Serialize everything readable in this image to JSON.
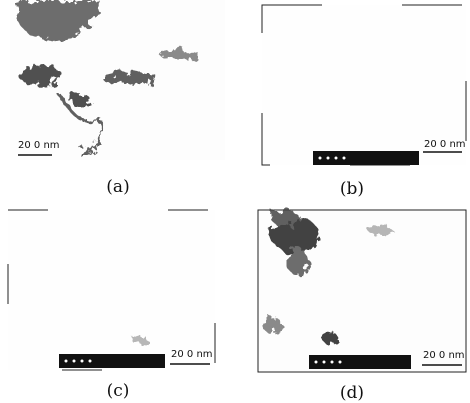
{
  "panels": [
    {
      "label": "(a)",
      "scale_bar": "20 0 nm"
    },
    {
      "label": "(b)",
      "scale_bar": "20 0 nm"
    },
    {
      "label": "(c)",
      "scale_bar": "20 0 nm"
    },
    {
      "label": "(d)",
      "scale_bar": "20 0 nm"
    }
  ]
}
